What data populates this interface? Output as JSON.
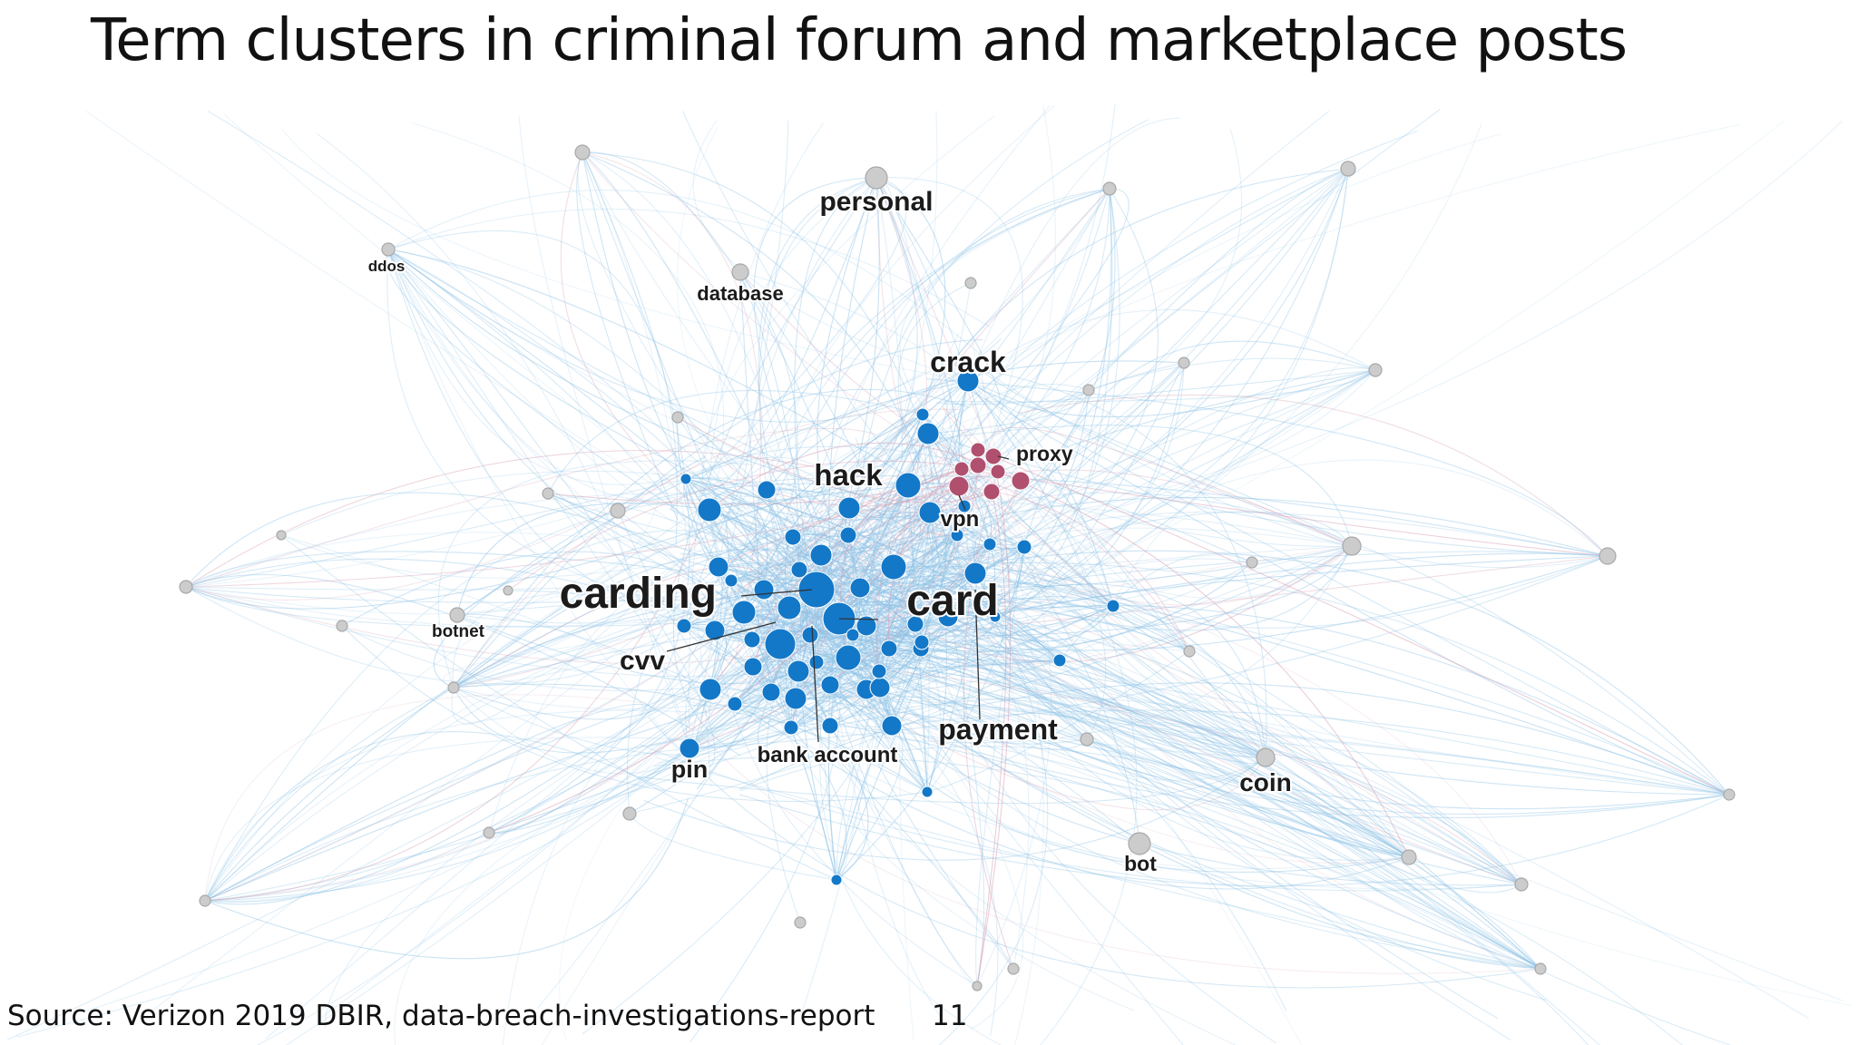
{
  "slide": {
    "title": "Term clusters in criminal forum and marketplace posts",
    "source": "Source: Verizon 2019 DBIR, data-breach-investigations-report",
    "page_number": "11"
  },
  "colors": {
    "core_cluster": "#1478c8",
    "proxy_cluster": "#b0506e",
    "peripheral": "#cccccc",
    "edge": "#8fc3e6"
  },
  "network": {
    "terms": [
      "carding",
      "card",
      "cvv",
      "hack",
      "crack",
      "payment",
      "bank account",
      "pin",
      "vpn",
      "proxy",
      "personal",
      "database",
      "ddos",
      "botnet",
      "coin",
      "bot"
    ]
  }
}
